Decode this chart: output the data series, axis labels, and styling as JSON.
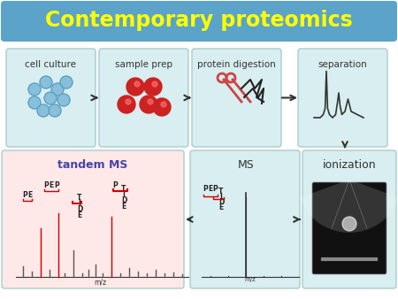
{
  "title": "Contemporary proteomics",
  "title_color": "#FFFF00",
  "title_bg_color": "#5BA3C9",
  "bg_color": "#FFFFFF",
  "panel_bg_top": "#D8EEF0",
  "panel_bg_tandem": "#FFE8E8",
  "panel_bg_ms": "#D8EEF0",
  "panel_bg_ioniz": "#D8EEF0",
  "top_labels": [
    "cell culture",
    "sample prep",
    "protein digestion",
    "separation"
  ],
  "bottom_labels": [
    "tandem MS",
    "MS",
    "ionization"
  ],
  "arrow_color": "#333333",
  "ms_label_color": "#4444AA",
  "tandem_label_color": "#4444AA",
  "red_color": "#CC0000",
  "bar_color_dark": "#555555",
  "bar_color_red": "#CC0000"
}
